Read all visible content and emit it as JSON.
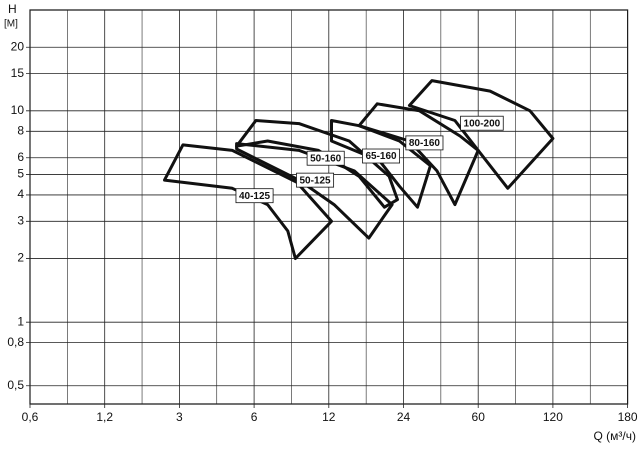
{
  "chart_data": {
    "type": "region",
    "ylabel": "H",
    "yunit": "[M]",
    "xlabel": "Q (м³/ч)",
    "xscale": "log",
    "yscale": "log",
    "grid": true,
    "color": "#111111",
    "xticks": [
      {
        "value": 0.6,
        "label": "0,6"
      },
      {
        "value": 1.2,
        "label": "1,2"
      },
      3,
      6,
      12,
      24,
      60,
      120,
      180
    ],
    "xlim": [
      0.6,
      180
    ],
    "ylim": [
      0.41,
      30
    ],
    "yticks": [
      {
        "value": 0.5,
        "label": "0,5"
      },
      {
        "value": 0.8,
        "label": "0,8"
      },
      1,
      2,
      3,
      4,
      5,
      6,
      8,
      10,
      15,
      20
    ],
    "series": [
      {
        "name": "40-125",
        "x": [
          2.5,
          3.1,
          4.9,
          8.9,
          12.3,
          8.8,
          8.2,
          6.8,
          4.9
        ],
        "y": [
          4.7,
          6.9,
          6.5,
          4.6,
          3.0,
          2.0,
          2.7,
          3.6,
          4.3
        ]
      },
      {
        "name": "50-125",
        "x": [
          5.1,
          9.1,
          15.2,
          21.6,
          17.4,
          12.6,
          9.1,
          5.1
        ],
        "y": [
          7.0,
          6.5,
          5.2,
          3.6,
          2.5,
          3.6,
          4.7,
          6.6
        ]
      },
      {
        "name": "50-160",
        "x": [
          5.1,
          6.1,
          9.1,
          14.5,
          21.0,
          22.7,
          20.1,
          15.9,
          10.9,
          6.8
        ],
        "y": [
          6.8,
          9.0,
          8.7,
          7.2,
          4.9,
          3.8,
          3.5,
          4.9,
          6.5,
          7.2
        ]
      },
      {
        "name": "65-160",
        "x": [
          12.3,
          12.3,
          15.9,
          23.1,
          33.4,
          28.5,
          23.1,
          19.2
        ],
        "y": [
          7.2,
          9.0,
          8.5,
          7.2,
          5.5,
          3.5,
          4.4,
          5.8
        ]
      },
      {
        "name": "80-160",
        "x": [
          15.9,
          18.8,
          29.2,
          48,
          60,
          45.1,
          36.2,
          25.8
        ],
        "y": [
          8.5,
          10.8,
          10,
          7.6,
          6.5,
          3.6,
          5.2,
          7.2
        ]
      },
      {
        "name": "100-200",
        "x": [
          25.8,
          34,
          67,
          97,
          120,
          79,
          60,
          45.1
        ],
        "y": [
          10.6,
          13.9,
          12.4,
          10,
          7.4,
          4.3,
          6.5,
          9.0
        ]
      }
    ]
  }
}
